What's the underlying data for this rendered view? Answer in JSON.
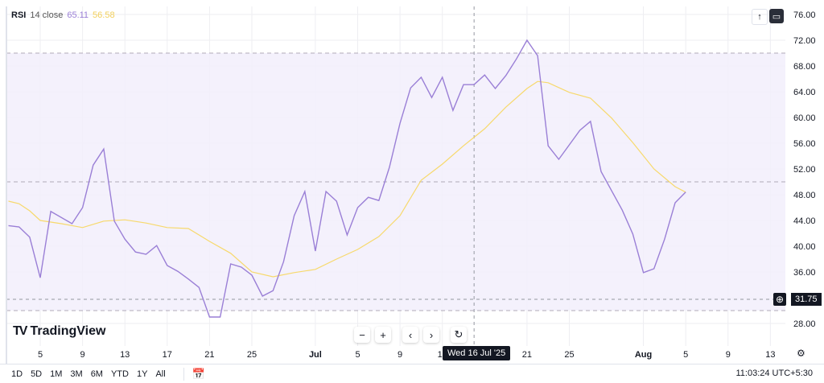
{
  "legend": {
    "name": "RSI",
    "params": "14 close",
    "rsi_value": "65.11",
    "ma_value": "56.58"
  },
  "colors": {
    "rsi": "#9a7fd6",
    "ma": "#f7d96c",
    "band_fill": "#f2eefb",
    "grid": "#eeeef2",
    "band_line": "#b0aab8"
  },
  "toolbar": {
    "scroll_up_icon": "arrow-up-icon",
    "fullscreen_icon": "maximize-icon"
  },
  "logo": {
    "text": "TradingView"
  },
  "nav": {
    "zoom_out": "−",
    "zoom_in": "+",
    "back": "‹",
    "forward": "›",
    "reset": "↻"
  },
  "crosshair": {
    "date_label": "Wed 16 Jul '25",
    "date": "2025-07-16"
  },
  "price_tag": {
    "value": "31.75"
  },
  "ranges": [
    "1D",
    "5D",
    "1M",
    "3M",
    "6M",
    "YTD",
    "1Y",
    "All"
  ],
  "clock": "11:03:24 UTC+5:30",
  "chart_data": {
    "type": "line",
    "ylim": [
      28,
      76
    ],
    "y_ticks": [
      "76.00",
      "72.00",
      "68.00",
      "64.00",
      "60.00",
      "56.00",
      "52.00",
      "48.00",
      "44.00",
      "40.00",
      "36.00",
      "28.00"
    ],
    "x_ticks": [
      {
        "label": "5",
        "date": "2025-06-05"
      },
      {
        "label": "9",
        "date": "2025-06-09"
      },
      {
        "label": "13",
        "date": "2025-06-13"
      },
      {
        "label": "17",
        "date": "2025-06-17"
      },
      {
        "label": "21",
        "date": "2025-06-21"
      },
      {
        "label": "25",
        "date": "2025-06-25"
      },
      {
        "label": "Jul",
        "date": "2025-07-01",
        "bold": true
      },
      {
        "label": "5",
        "date": "2025-07-05"
      },
      {
        "label": "9",
        "date": "2025-07-09"
      },
      {
        "label": "13",
        "date": "2025-07-13"
      },
      {
        "label": "21",
        "date": "2025-07-21"
      },
      {
        "label": "25",
        "date": "2025-07-25"
      },
      {
        "label": "Aug",
        "date": "2025-08-01",
        "bold": true
      },
      {
        "label": "5",
        "date": "2025-08-05"
      },
      {
        "label": "9",
        "date": "2025-08-09"
      },
      {
        "label": "13",
        "date": "2025-08-13"
      }
    ],
    "bands": {
      "upper": 70,
      "middle": 50,
      "lower": 30
    },
    "hline": 31.75,
    "series": [
      {
        "name": "RSI",
        "points": [
          [
            "2025-06-02",
            43.2
          ],
          [
            "2025-06-03",
            43.0
          ],
          [
            "2025-06-04",
            41.4
          ],
          [
            "2025-06-05",
            35.1
          ],
          [
            "2025-06-06",
            45.4
          ],
          [
            "2025-06-08",
            43.5
          ],
          [
            "2025-06-09",
            46.0
          ],
          [
            "2025-06-10",
            52.6
          ],
          [
            "2025-06-11",
            55.1
          ],
          [
            "2025-06-12",
            43.9
          ],
          [
            "2025-06-13",
            41.1
          ],
          [
            "2025-06-14",
            39.1
          ],
          [
            "2025-06-15",
            38.75
          ],
          [
            "2025-06-16",
            40.1
          ],
          [
            "2025-06-17",
            37.0
          ],
          [
            "2025-06-18",
            36.1
          ],
          [
            "2025-06-19",
            34.9
          ],
          [
            "2025-06-20",
            33.6
          ],
          [
            "2025-06-21",
            29.0
          ],
          [
            "2025-06-22",
            29.0
          ],
          [
            "2025-06-23",
            37.25
          ],
          [
            "2025-06-24",
            36.75
          ],
          [
            "2025-06-25",
            35.5
          ],
          [
            "2025-06-26",
            32.25
          ],
          [
            "2025-06-27",
            33.1
          ],
          [
            "2025-06-28",
            37.6
          ],
          [
            "2025-06-29",
            44.75
          ],
          [
            "2025-06-30",
            48.5
          ],
          [
            "2025-07-01",
            39.25
          ],
          [
            "2025-07-02",
            48.5
          ],
          [
            "2025-07-03",
            47.0
          ],
          [
            "2025-07-04",
            41.75
          ],
          [
            "2025-07-05",
            46.0
          ],
          [
            "2025-07-06",
            47.6
          ],
          [
            "2025-07-07",
            47.1
          ],
          [
            "2025-07-08",
            52.25
          ],
          [
            "2025-07-09",
            59.1
          ],
          [
            "2025-07-10",
            64.6
          ],
          [
            "2025-07-11",
            66.25
          ],
          [
            "2025-07-12",
            63.1
          ],
          [
            "2025-07-13",
            66.25
          ],
          [
            "2025-07-14",
            61.1
          ],
          [
            "2025-07-15",
            65.1
          ],
          [
            "2025-07-16",
            65.1
          ],
          [
            "2025-07-17",
            66.6
          ],
          [
            "2025-07-18",
            64.5
          ],
          [
            "2025-07-19",
            66.5
          ],
          [
            "2025-07-20",
            69.1
          ],
          [
            "2025-07-21",
            72.0
          ],
          [
            "2025-07-22",
            69.6
          ],
          [
            "2025-07-23",
            55.6
          ],
          [
            "2025-07-24",
            53.5
          ],
          [
            "2025-07-26",
            58.0
          ],
          [
            "2025-07-27",
            59.4
          ],
          [
            "2025-07-28",
            51.6
          ],
          [
            "2025-07-30",
            45.6
          ],
          [
            "2025-07-31",
            41.9
          ],
          [
            "2025-08-01",
            35.9
          ],
          [
            "2025-08-02",
            36.5
          ],
          [
            "2025-08-03",
            41.1
          ],
          [
            "2025-08-04",
            46.75
          ],
          [
            "2025-08-05",
            48.4
          ]
        ]
      },
      {
        "name": "RSI-based MA",
        "points": [
          [
            "2025-06-02",
            47.0
          ],
          [
            "2025-06-03",
            46.6
          ],
          [
            "2025-06-04",
            45.5
          ],
          [
            "2025-06-05",
            44.0
          ],
          [
            "2025-06-07",
            43.5
          ],
          [
            "2025-06-09",
            42.9
          ],
          [
            "2025-06-11",
            43.9
          ],
          [
            "2025-06-13",
            44.1
          ],
          [
            "2025-06-15",
            43.6
          ],
          [
            "2025-06-17",
            42.9
          ],
          [
            "2025-06-19",
            42.75
          ],
          [
            "2025-06-21",
            40.75
          ],
          [
            "2025-06-23",
            38.9
          ],
          [
            "2025-06-25",
            36.0
          ],
          [
            "2025-06-27",
            35.25
          ],
          [
            "2025-06-29",
            35.9
          ],
          [
            "2025-07-01",
            36.4
          ],
          [
            "2025-07-03",
            38.0
          ],
          [
            "2025-07-05",
            39.5
          ],
          [
            "2025-07-07",
            41.5
          ],
          [
            "2025-07-09",
            44.75
          ],
          [
            "2025-07-11",
            50.25
          ],
          [
            "2025-07-13",
            52.75
          ],
          [
            "2025-07-15",
            55.6
          ],
          [
            "2025-07-17",
            58.25
          ],
          [
            "2025-07-19",
            61.6
          ],
          [
            "2025-07-21",
            64.5
          ],
          [
            "2025-07-22",
            65.6
          ],
          [
            "2025-07-23",
            65.4
          ],
          [
            "2025-07-25",
            63.9
          ],
          [
            "2025-07-27",
            63.0
          ],
          [
            "2025-07-29",
            59.9
          ],
          [
            "2025-07-31",
            56.1
          ],
          [
            "2025-08-02",
            52.0
          ],
          [
            "2025-08-04",
            49.25
          ],
          [
            "2025-08-05",
            48.4
          ]
        ]
      }
    ]
  }
}
